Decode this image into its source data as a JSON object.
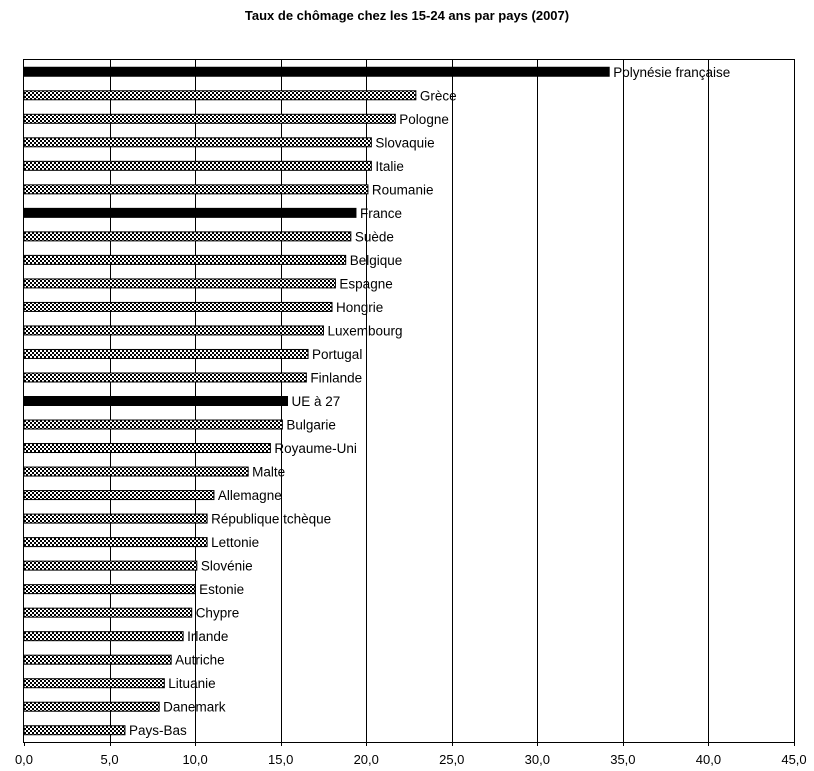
{
  "chart_data": {
    "type": "bar",
    "orientation": "horizontal",
    "title": "Taux de chômage chez les 15-24 ans par pays (2007)",
    "xlabel": "",
    "ylabel": "",
    "xlim": [
      0,
      45
    ],
    "x_ticks": [
      "0,0",
      "5,0",
      "10,0",
      "15,0",
      "20,0",
      "25,0",
      "30,0",
      "35,0",
      "40,0",
      "45,0"
    ],
    "x_tick_values": [
      0,
      5,
      10,
      15,
      20,
      25,
      30,
      35,
      40,
      45
    ],
    "grid": "vertical",
    "legend": "none",
    "highlight_color": "#000000",
    "pattern_color": "#000000",
    "categories": [
      "Polynésie française",
      "Grèce",
      "Pologne",
      "Slovaquie",
      "Italie",
      "Roumanie",
      "France",
      "Suède",
      "Belgique",
      "Espagne",
      "Hongrie",
      "Luxembourg",
      "Portugal",
      "Finlande",
      "UE à 27",
      "Bulgarie",
      "Royaume-Uni",
      "Malte",
      "Allemagne",
      "République tchèque",
      "Lettonie",
      "Slovénie",
      "Estonie",
      "Chypre",
      "Irlande",
      "Autriche",
      "Lituanie",
      "Danemark",
      "Pays-Bas"
    ],
    "values": [
      34.2,
      22.9,
      21.7,
      20.3,
      20.3,
      20.1,
      19.4,
      19.1,
      18.8,
      18.2,
      18.0,
      17.5,
      16.6,
      16.5,
      15.4,
      15.1,
      14.4,
      13.1,
      11.1,
      10.7,
      10.7,
      10.1,
      10.0,
      9.8,
      9.3,
      8.6,
      8.2,
      7.9,
      5.9
    ],
    "highlighted": [
      true,
      false,
      false,
      false,
      false,
      false,
      true,
      false,
      false,
      false,
      false,
      false,
      false,
      false,
      true,
      false,
      false,
      false,
      false,
      false,
      false,
      false,
      false,
      false,
      false,
      false,
      false,
      false,
      false
    ]
  }
}
